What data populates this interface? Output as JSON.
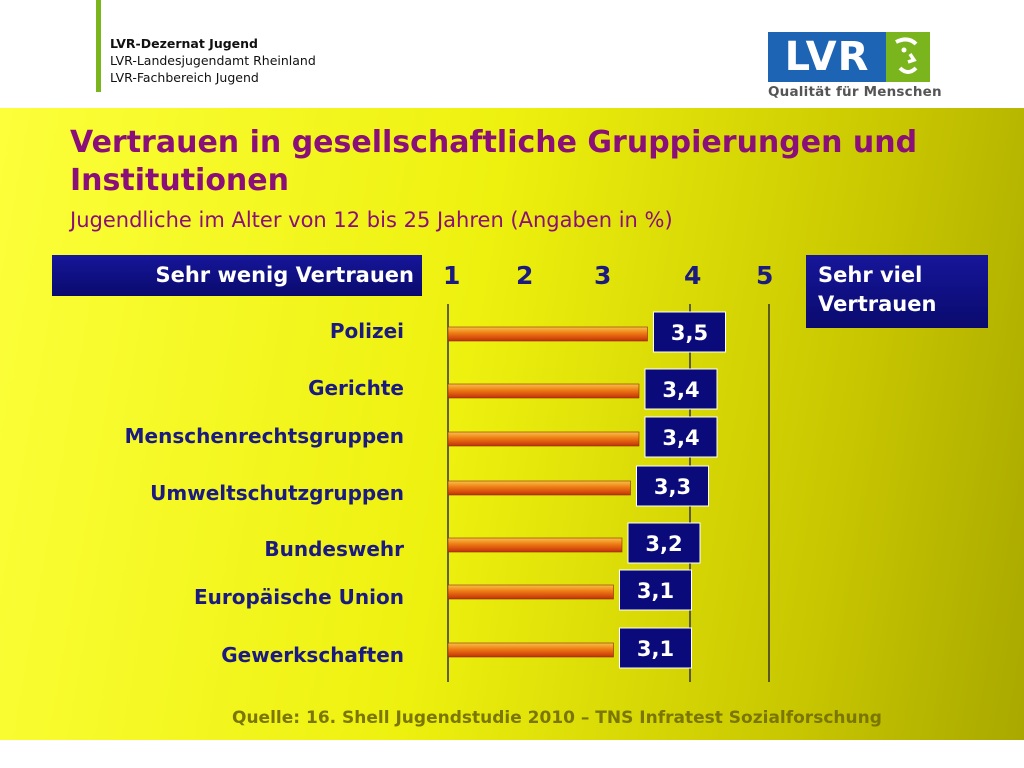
{
  "header": {
    "org_line1": "LVR-Dezernat Jugend",
    "org_line2": "LVR-Landesjugendamt Rheinland",
    "org_line3": "LVR-Fachbereich Jugend",
    "logo_text": "LVR",
    "logo_tagline": "Qualität für Menschen"
  },
  "legend": {
    "left": "Sehr wenig Vertrauen",
    "right_line1": "Sehr viel",
    "right_line2": "Vertrauen"
  },
  "source": "Quelle: 16. Shell Jugendstudie 2010 – TNS Infratest Sozialforschung",
  "colors": {
    "title": "#8a0f78",
    "label": "#1a1a80",
    "box": "#0a0a7a",
    "bar": "#e87a10",
    "background": "#f0f214"
  },
  "chart_data": {
    "type": "bar",
    "orientation": "horizontal",
    "title": "Vertrauen in gesellschaftliche Gruppierungen und Institutionen",
    "subtitle": "Jugendliche im Alter von 12 bis 25 Jahren (Angaben in %)",
    "categories": [
      "Polizei",
      "Gerichte",
      "Menschenrechtsgruppen",
      "Umweltschutzgruppen",
      "Bundeswehr",
      "Europäische Union",
      "Gewerkschaften"
    ],
    "values": [
      3.5,
      3.4,
      3.4,
      3.3,
      3.2,
      3.1,
      3.1
    ],
    "value_labels": [
      "3,5",
      "3,4",
      "3,4",
      "3,3",
      "3,2",
      "3,1",
      "3,1"
    ],
    "xticks": [
      "1",
      "2",
      "3",
      "4",
      "5"
    ],
    "xlim": [
      1,
      5
    ],
    "grid_at": [
      1,
      4,
      5
    ]
  }
}
